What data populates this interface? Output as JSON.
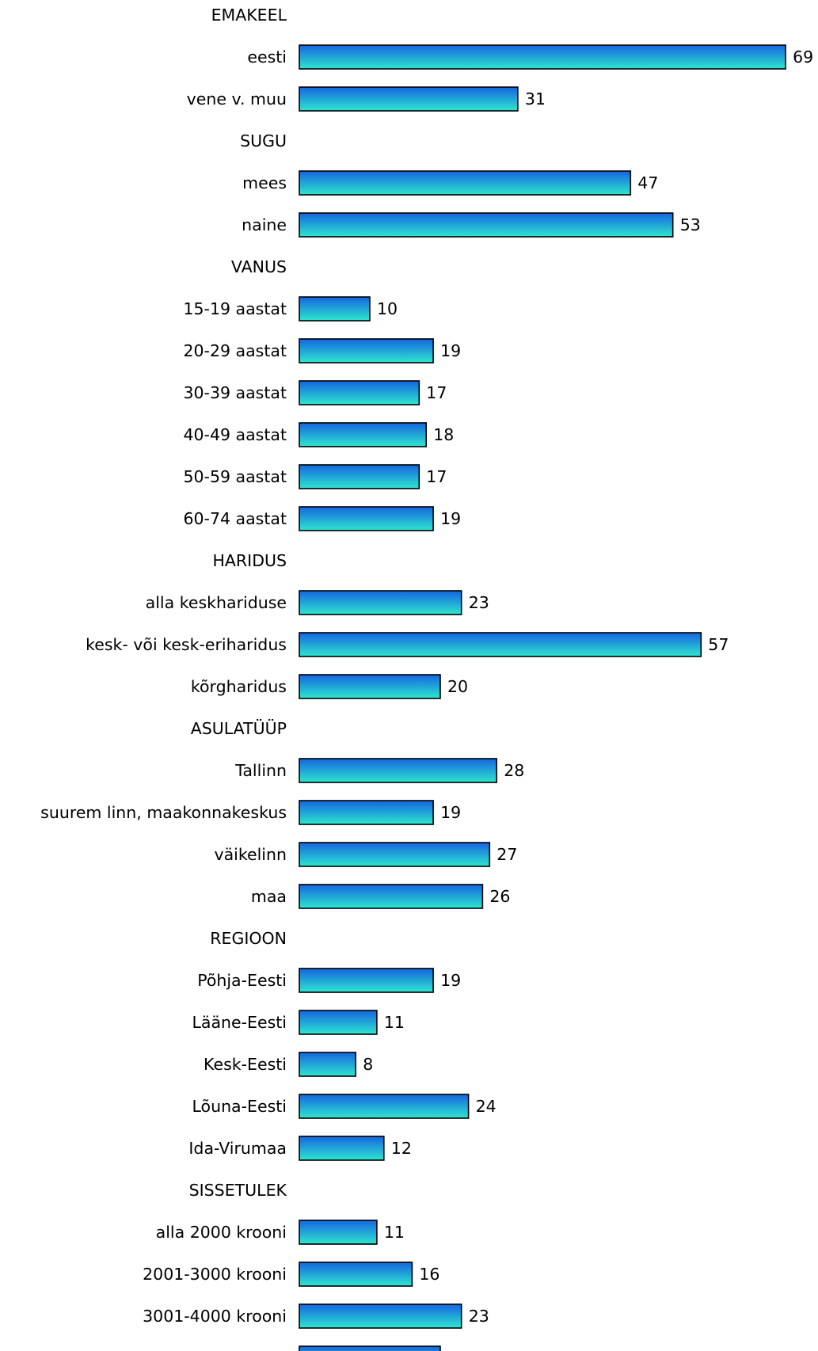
{
  "chart_data": {
    "type": "bar",
    "orientation": "horizontal",
    "colors": {
      "bar_top": "#1565e0",
      "bar_bottom": "#2ee6cf",
      "outline": "#000000"
    },
    "rows": [
      {
        "label": "EMAKEEL",
        "header": true
      },
      {
        "label": "eesti",
        "value": 69
      },
      {
        "label": "vene v. muu",
        "value": 31
      },
      {
        "label": "SUGU",
        "header": true
      },
      {
        "label": "mees",
        "value": 47
      },
      {
        "label": "naine",
        "value": 53
      },
      {
        "label": "VANUS",
        "header": true
      },
      {
        "label": "15-19 aastat",
        "value": 10
      },
      {
        "label": "20-29 aastat",
        "value": 19
      },
      {
        "label": "30-39 aastat",
        "value": 17
      },
      {
        "label": "40-49 aastat",
        "value": 18
      },
      {
        "label": "50-59 aastat",
        "value": 17
      },
      {
        "label": "60-74 aastat",
        "value": 19
      },
      {
        "label": "HARIDUS",
        "header": true
      },
      {
        "label": "alla keskhariduse",
        "value": 23
      },
      {
        "label": "kesk- või kesk-eriharidus",
        "value": 57
      },
      {
        "label": "kõrgharidus",
        "value": 20
      },
      {
        "label": "ASULATÜÜP",
        "header": true
      },
      {
        "label": "Tallinn",
        "value": 28
      },
      {
        "label": "suurem linn, maakonnakeskus",
        "value": 19
      },
      {
        "label": "väikelinn",
        "value": 27
      },
      {
        "label": "maa",
        "value": 26
      },
      {
        "label": "REGIOON",
        "header": true
      },
      {
        "label": "Põhja-Eesti",
        "value": 19
      },
      {
        "label": "Lääne-Eesti",
        "value": 11
      },
      {
        "label": "Kesk-Eesti",
        "value": 8
      },
      {
        "label": "Lõuna-Eesti",
        "value": 24
      },
      {
        "label": "Ida-Virumaa",
        "value": 12
      },
      {
        "label": "SISSETULEK",
        "header": true
      },
      {
        "label": "alla 2000 krooni",
        "value": 11
      },
      {
        "label": "2001-3000 krooni",
        "value": 16
      },
      {
        "label": "3001-4000 krooni",
        "value": 23
      },
      {
        "label": "",
        "value": 20
      }
    ]
  }
}
